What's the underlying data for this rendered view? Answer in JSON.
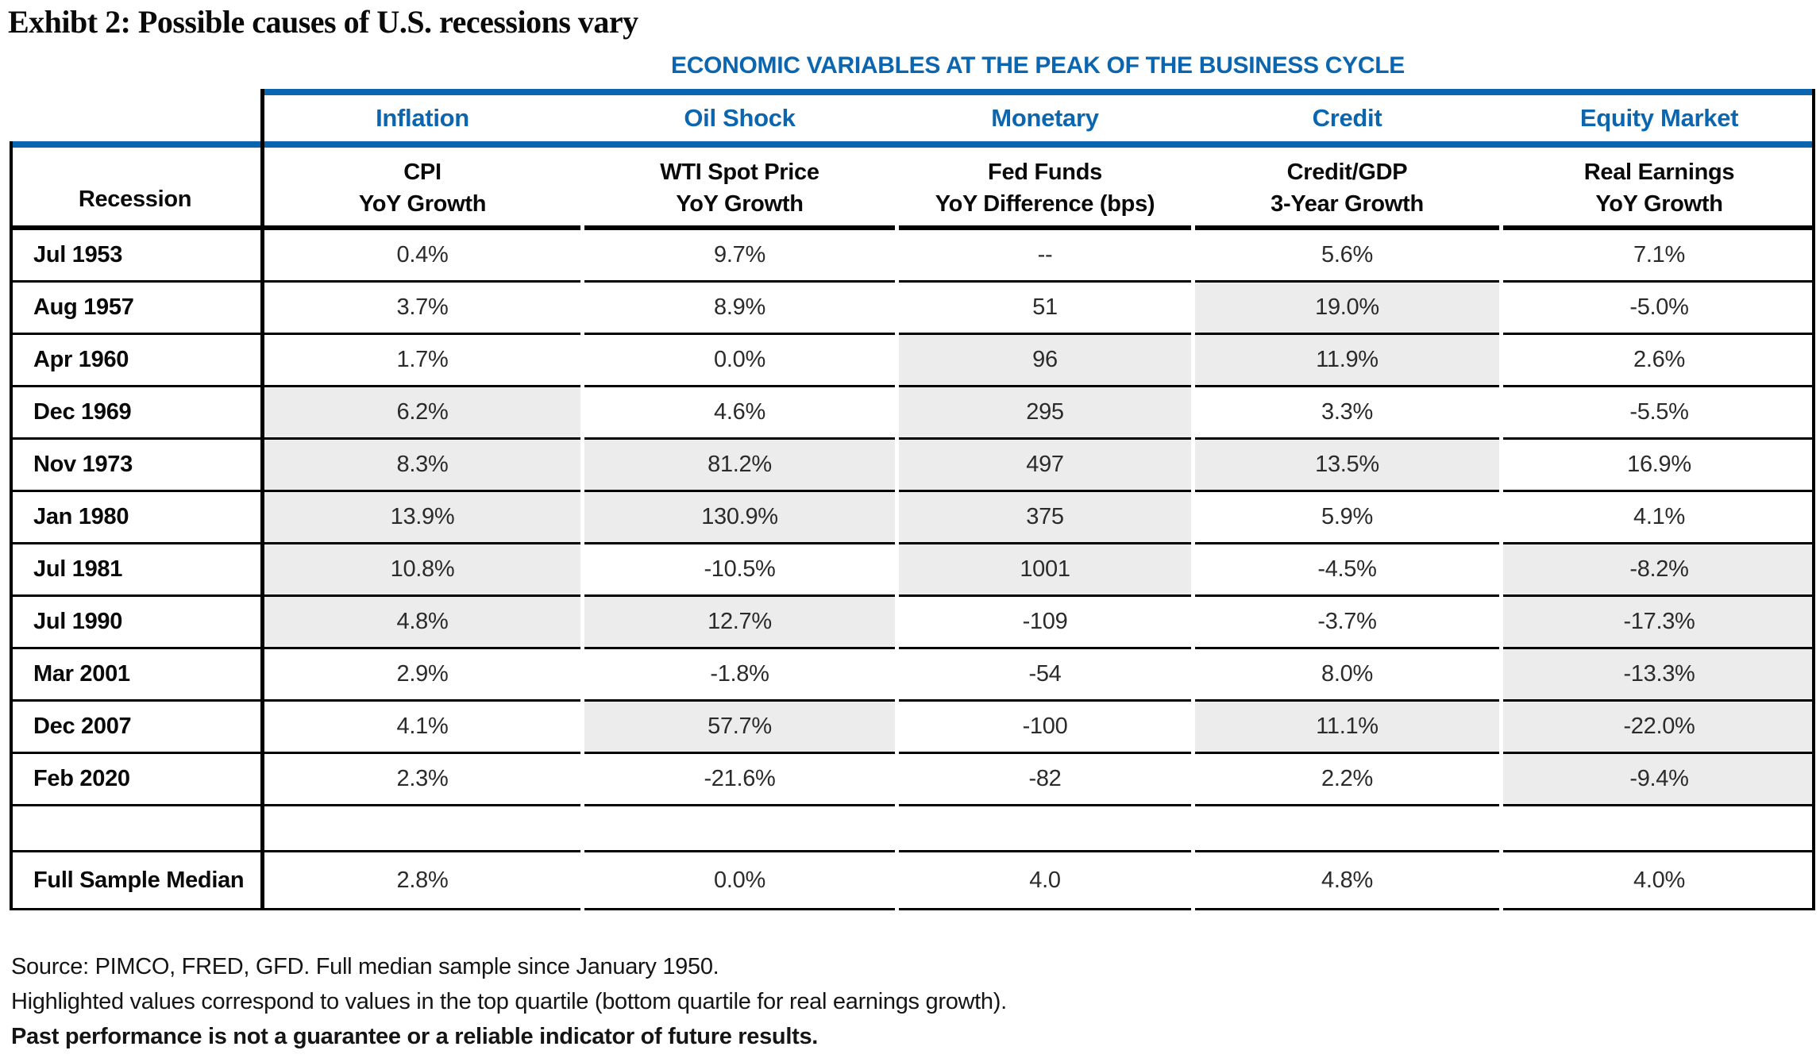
{
  "title": "Exhibt 2: Possible causes of U.S. recessions vary",
  "banner": "ECONOMIC VARIABLES AT THE PEAK OF THE BUSINESS CYCLE",
  "colors": {
    "accent_blue": "#0b66af",
    "highlight_gray": "#ececec",
    "border_black": "#000000"
  },
  "columns": {
    "row_header": "Recession",
    "groups": [
      "Inflation",
      "Oil Shock",
      "Monetary",
      "Credit",
      "Equity Market"
    ],
    "subheaders": [
      [
        "CPI",
        "YoY Growth"
      ],
      [
        "WTI Spot Price",
        "YoY Growth"
      ],
      [
        "Fed Funds",
        "YoY Difference (bps)"
      ],
      [
        "Credit/GDP",
        "3-Year Growth"
      ],
      [
        "Real Earnings",
        "YoY Growth"
      ]
    ]
  },
  "rows": [
    {
      "label": "Jul 1953",
      "values": [
        "0.4%",
        "9.7%",
        "--",
        "5.6%",
        "7.1%"
      ],
      "highlight": [
        false,
        false,
        false,
        false,
        false
      ]
    },
    {
      "label": "Aug 1957",
      "values": [
        "3.7%",
        "8.9%",
        "51",
        "19.0%",
        "-5.0%"
      ],
      "highlight": [
        false,
        false,
        false,
        true,
        false
      ]
    },
    {
      "label": "Apr 1960",
      "values": [
        "1.7%",
        "0.0%",
        "96",
        "11.9%",
        "2.6%"
      ],
      "highlight": [
        false,
        false,
        true,
        true,
        false
      ]
    },
    {
      "label": "Dec 1969",
      "values": [
        "6.2%",
        "4.6%",
        "295",
        "3.3%",
        "-5.5%"
      ],
      "highlight": [
        true,
        false,
        true,
        false,
        false
      ]
    },
    {
      "label": "Nov 1973",
      "values": [
        "8.3%",
        "81.2%",
        "497",
        "13.5%",
        "16.9%"
      ],
      "highlight": [
        true,
        true,
        true,
        true,
        false
      ]
    },
    {
      "label": "Jan 1980",
      "values": [
        "13.9%",
        "130.9%",
        "375",
        "5.9%",
        "4.1%"
      ],
      "highlight": [
        true,
        true,
        true,
        false,
        false
      ]
    },
    {
      "label": "Jul 1981",
      "values": [
        "10.8%",
        "-10.5%",
        "1001",
        "-4.5%",
        "-8.2%"
      ],
      "highlight": [
        true,
        false,
        true,
        false,
        true
      ]
    },
    {
      "label": "Jul 1990",
      "values": [
        "4.8%",
        "12.7%",
        "-109",
        "-3.7%",
        "-17.3%"
      ],
      "highlight": [
        true,
        true,
        false,
        false,
        true
      ]
    },
    {
      "label": "Mar 2001",
      "values": [
        "2.9%",
        "-1.8%",
        "-54",
        "8.0%",
        "-13.3%"
      ],
      "highlight": [
        false,
        false,
        false,
        false,
        true
      ]
    },
    {
      "label": "Dec 2007",
      "values": [
        "4.1%",
        "57.7%",
        "-100",
        "11.1%",
        "-22.0%"
      ],
      "highlight": [
        false,
        true,
        false,
        true,
        true
      ]
    },
    {
      "label": "Feb 2020",
      "values": [
        "2.3%",
        "-21.6%",
        "-82",
        "2.2%",
        "-9.4%"
      ],
      "highlight": [
        false,
        false,
        false,
        false,
        true
      ]
    }
  ],
  "median_row": {
    "label": "Full Sample Median",
    "values": [
      "2.8%",
      "0.0%",
      "4.0",
      "4.8%",
      "4.0%"
    ]
  },
  "footnotes": [
    "Source: PIMCO, FRED, GFD. Full median sample since January 1950.",
    "Highlighted values correspond to values in the top quartile (bottom quartile for real earnings growth).",
    "Past performance is not a guarantee or a reliable indicator of future results."
  ]
}
